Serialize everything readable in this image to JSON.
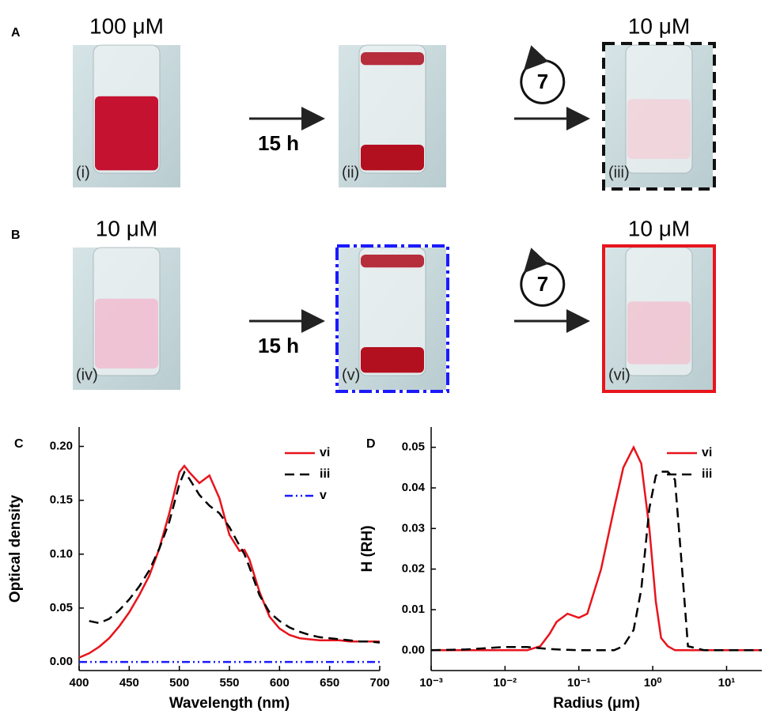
{
  "row_labels": [
    "A",
    "B"
  ],
  "photos": [
    {
      "concentration": "100 μM",
      "label": "(i)"
    },
    {
      "label": "(ii)"
    },
    {
      "concentration": "10 μM",
      "label": "(iii)"
    },
    {
      "concentration": "10 μM",
      "label": "(iv)"
    },
    {
      "label": "(v)"
    },
    {
      "concentration": "10 μM",
      "label": "(vi)"
    }
  ],
  "arrows": [
    {
      "text": "15 h"
    },
    {
      "cycle": "7"
    },
    {
      "text": "15 h"
    },
    {
      "cycle": "7"
    }
  ],
  "chart_data": [
    {
      "type": "line",
      "panel_label": "C",
      "xlabel": "Wavelength (nm)",
      "ylabel": "Optical density",
      "x": [
        400,
        410,
        420,
        430,
        440,
        450,
        460,
        470,
        480,
        490,
        500,
        505,
        510,
        520,
        530,
        540,
        550,
        560,
        565,
        570,
        580,
        590,
        600,
        610,
        620,
        630,
        640,
        650,
        660,
        670,
        680,
        690,
        700
      ],
      "series": [
        {
          "name": "vi",
          "color": "#e8141c",
          "dash": "solid",
          "values": [
            0.004,
            0.008,
            0.014,
            0.022,
            0.033,
            0.046,
            0.062,
            0.08,
            0.105,
            0.138,
            0.176,
            0.182,
            0.176,
            0.166,
            0.173,
            0.152,
            0.118,
            0.103,
            0.104,
            0.095,
            0.065,
            0.042,
            0.031,
            0.025,
            0.022,
            0.021,
            0.02,
            0.02,
            0.02,
            0.019,
            0.019,
            0.019,
            0.019
          ]
        },
        {
          "name": "iii",
          "color": "#000000",
          "dash": "dashed",
          "values": [
            null,
            0.038,
            0.036,
            0.04,
            0.048,
            0.058,
            0.07,
            0.085,
            0.105,
            0.13,
            0.165,
            0.176,
            0.17,
            0.155,
            0.145,
            0.138,
            0.125,
            0.108,
            0.1,
            0.088,
            0.062,
            0.046,
            0.038,
            0.032,
            0.028,
            0.025,
            0.023,
            0.022,
            0.021,
            0.02,
            0.019,
            0.019,
            0.018
          ]
        },
        {
          "name": "v",
          "color": "#1a1aff",
          "dash": "dashdot",
          "values": [
            0,
            0,
            0,
            0,
            0,
            0,
            0,
            0,
            0,
            0,
            0,
            0,
            0,
            0,
            0,
            0,
            0,
            0,
            0,
            0,
            0,
            0,
            0,
            0,
            0,
            0,
            0,
            0,
            0,
            0,
            0,
            0,
            0
          ]
        }
      ],
      "xlim": [
        400,
        700
      ],
      "xticks": [
        400,
        450,
        500,
        550,
        600,
        650,
        700
      ],
      "ylim": [
        -0.008,
        0.218
      ],
      "yticks": [
        {
          "value": 0,
          "label": "0.00"
        },
        {
          "value": 0.05,
          "label": "0.05"
        },
        {
          "value": 0.1,
          "label": "0.10"
        },
        {
          "value": 0.15,
          "label": "0.15"
        },
        {
          "value": 0.2,
          "label": "0.20"
        }
      ],
      "legend": "top-right"
    },
    {
      "type": "line",
      "panel_label": "D",
      "xlabel": "Radius (μm)",
      "ylabel": "H (RH)",
      "xscale": "log",
      "x": [
        0.001,
        0.003,
        0.01,
        0.02,
        0.03,
        0.04,
        0.05,
        0.07,
        0.1,
        0.13,
        0.2,
        0.3,
        0.4,
        0.55,
        0.7,
        0.9,
        1.1,
        1.3,
        1.6,
        2,
        2.5,
        3,
        5,
        10,
        30
      ],
      "series": [
        {
          "name": "vi",
          "color": "#e8141c",
          "dash": "solid",
          "values": [
            0,
            0,
            0,
            0,
            0.001,
            0.004,
            0.007,
            0.009,
            0.008,
            0.009,
            0.02,
            0.035,
            0.045,
            0.05,
            0.046,
            0.03,
            0.012,
            0.003,
            0.001,
            0,
            0,
            0,
            0,
            0,
            0
          ]
        },
        {
          "name": "iii",
          "color": "#000000",
          "dash": "dashed",
          "values": [
            0,
            0.0002,
            0.0008,
            0.0008,
            0.0005,
            0.0003,
            0.0002,
            0.0001,
            0,
            0,
            0,
            0,
            0.001,
            0.005,
            0.015,
            0.035,
            0.043,
            0.044,
            0.044,
            0.042,
            0.02,
            0.001,
            0,
            0,
            0
          ]
        }
      ],
      "xlim": [
        0.001,
        30
      ],
      "xticks": [
        {
          "value": 0.001,
          "label": "10⁻³"
        },
        {
          "value": 0.01,
          "label": "10⁻²"
        },
        {
          "value": 0.1,
          "label": "10⁻¹"
        },
        {
          "value": 1,
          "label": "10⁰"
        },
        {
          "value": 10,
          "label": "10¹"
        }
      ],
      "ylim": [
        -0.005,
        0.055
      ],
      "yticks": [
        {
          "value": 0,
          "label": "0.00"
        },
        {
          "value": 0.01,
          "label": "0.01"
        },
        {
          "value": 0.02,
          "label": "0.02"
        },
        {
          "value": 0.03,
          "label": "0.03"
        },
        {
          "value": 0.04,
          "label": "0.04"
        },
        {
          "value": 0.05,
          "label": "0.05"
        }
      ],
      "legend": "top-right"
    }
  ]
}
